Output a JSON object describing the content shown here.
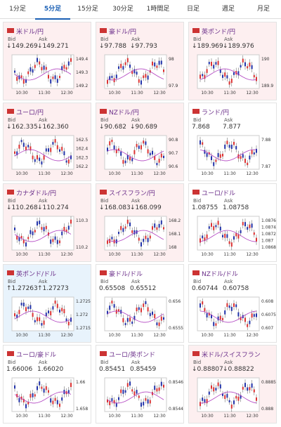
{
  "tabs": [
    "1分足",
    "5分足",
    "15分足",
    "30分足",
    "1時間足",
    "日足",
    "週足",
    "月足"
  ],
  "active_tab": 1,
  "bid_label": "Bid",
  "ask_label": "Ask",
  "times": [
    "10:30",
    "11:30",
    "12:30"
  ],
  "cards": [
    {
      "pair": "米ドル/円",
      "bid": "↓149.269",
      "ask": "↓149.271",
      "state": "down",
      "yticks": [
        "149.4",
        "149.3",
        "149.2"
      ]
    },
    {
      "pair": "豪ドル/円",
      "bid": "↓97.788",
      "ask": "↓97.793",
      "state": "down",
      "yticks": [
        "98",
        "97.9"
      ]
    },
    {
      "pair": "英ポンド/円",
      "bid": "↓189.969",
      "ask": "↓189.976",
      "state": "down",
      "yticks": [
        "190",
        "189.9"
      ]
    },
    {
      "pair": "ユーロ/円",
      "bid": "↓162.335",
      "ask": "↓162.360",
      "state": "down",
      "yticks": [
        "162.5",
        "162.4",
        "162.3",
        "162.2"
      ]
    },
    {
      "pair": "NZドル/円",
      "bid": "↓90.682",
      "ask": "↓90.689",
      "state": "down",
      "yticks": [
        "90.8",
        "90.7",
        "90.6"
      ]
    },
    {
      "pair": "ランド/円",
      "bid": "7.868",
      "ask": "7.877",
      "state": "flat",
      "yticks": [
        "7.88",
        "7.87"
      ]
    },
    {
      "pair": "カナダドル/円",
      "bid": "↓110.268",
      "ask": "↓110.274",
      "state": "down",
      "yticks": [
        "110.3",
        "110.2"
      ]
    },
    {
      "pair": "スイスフラン/円",
      "bid": "↓168.083",
      "ask": "↓168.099",
      "state": "down",
      "yticks": [
        "168.2",
        "168.1",
        "168"
      ]
    },
    {
      "pair": "ユーロ/ドル",
      "bid": "1.08755",
      "ask": "1.08758",
      "state": "flat",
      "yticks": [
        "1.0876",
        "1.0874",
        "1.0872",
        "1.087",
        "1.0868"
      ]
    },
    {
      "pair": "英ポンド/ドル",
      "bid": "↑1.27263",
      "ask": "↑1.27273",
      "state": "up",
      "yticks": [
        "1.2725",
        "1.272",
        "1.2715"
      ]
    },
    {
      "pair": "豪ドル/ドル",
      "bid": "0.65508",
      "ask": "0.65512",
      "state": "flat",
      "yticks": [
        "0.656",
        "0.6555"
      ]
    },
    {
      "pair": "NZドル/ドル",
      "bid": "0.60744",
      "ask": "0.60758",
      "state": "flat",
      "yticks": [
        "0.608",
        "0.6075",
        "0.607"
      ]
    },
    {
      "pair": "ユーロ/豪ドル",
      "bid": "1.66006",
      "ask": "1.66020",
      "state": "flat",
      "yticks": [
        "1.66",
        "1.658"
      ]
    },
    {
      "pair": "ユーロ/英ポンド",
      "bid": "0.85451",
      "ask": "0.85459",
      "state": "flat",
      "yticks": [
        "0.8546",
        "0.8544"
      ]
    },
    {
      "pair": "米ドル/スイスフラン",
      "bid": "↓0.88807",
      "ask": "↓0.88822",
      "state": "down",
      "yticks": [
        "0.8885",
        "0.888"
      ]
    }
  ]
}
